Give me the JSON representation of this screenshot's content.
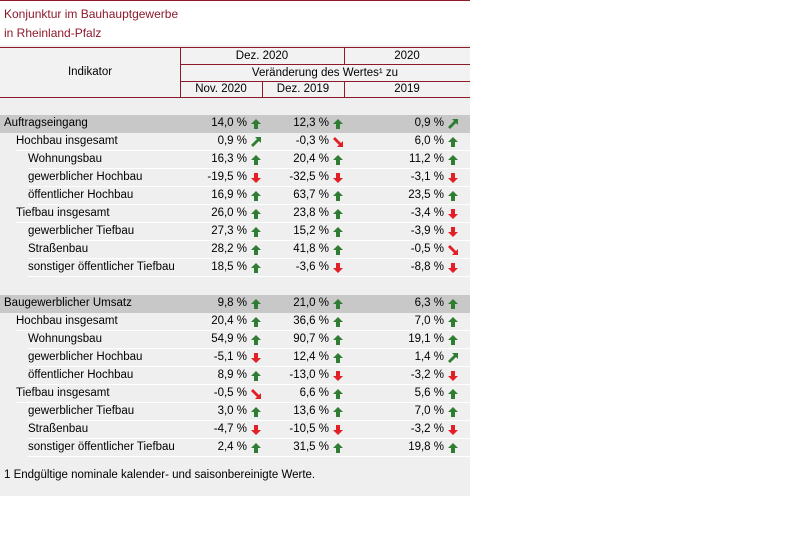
{
  "title": {
    "line1": "Konjunktur im Bauhauptgewerbe",
    "line2": "in Rheinland-Pfalz"
  },
  "header": {
    "indicator": "Indikator",
    "period_dec2020": "Dez. 2020",
    "period_2020": "2020",
    "change_label": "Veränderung des Wertes¹ zu",
    "col1": "Nov. 2020",
    "col2": "Dez. 2019",
    "col3": "2019"
  },
  "sections": [
    {
      "rows": [
        {
          "label": "Auftragseingang",
          "level": 0,
          "v1": "14,0 %",
          "a1": "up",
          "v2": "12,3 %",
          "a2": "up",
          "v3": "0,9 %",
          "a3": "up-right"
        },
        {
          "label": "Hochbau insgesamt",
          "level": 1,
          "v1": "0,9 %",
          "a1": "up-right",
          "v2": "-0,3 %",
          "a2": "down-right",
          "v3": "6,0 %",
          "a3": "up"
        },
        {
          "label": "Wohnungsbau",
          "level": 2,
          "v1": "16,3 %",
          "a1": "up",
          "v2": "20,4 %",
          "a2": "up",
          "v3": "11,2 %",
          "a3": "up"
        },
        {
          "label": "gewerblicher Hochbau",
          "level": 2,
          "v1": "-19,5 %",
          "a1": "down",
          "v2": "-32,5 %",
          "a2": "down",
          "v3": "-3,1 %",
          "a3": "down"
        },
        {
          "label": "öffentlicher Hochbau",
          "level": 2,
          "v1": "16,9 %",
          "a1": "up",
          "v2": "63,7 %",
          "a2": "up",
          "v3": "23,5 %",
          "a3": "up"
        },
        {
          "label": "Tiefbau insgesamt",
          "level": 1,
          "v1": "26,0 %",
          "a1": "up",
          "v2": "23,8 %",
          "a2": "up",
          "v3": "-3,4 %",
          "a3": "down"
        },
        {
          "label": "gewerblicher Tiefbau",
          "level": 2,
          "v1": "27,3 %",
          "a1": "up",
          "v2": "15,2 %",
          "a2": "up",
          "v3": "-3,9 %",
          "a3": "down"
        },
        {
          "label": "Straßenbau",
          "level": 2,
          "v1": "28,2 %",
          "a1": "up",
          "v2": "41,8 %",
          "a2": "up",
          "v3": "-0,5 %",
          "a3": "down-right"
        },
        {
          "label": "sonstiger öffentlicher Tiefbau",
          "level": 2,
          "v1": "18,5 %",
          "a1": "up",
          "v2": "-3,6 %",
          "a2": "down",
          "v3": "-8,8 %",
          "a3": "down"
        }
      ]
    },
    {
      "rows": [
        {
          "label": "Baugewerblicher Umsatz",
          "level": 0,
          "v1": "9,8 %",
          "a1": "up",
          "v2": "21,0 %",
          "a2": "up",
          "v3": "6,3 %",
          "a3": "up"
        },
        {
          "label": "Hochbau insgesamt",
          "level": 1,
          "v1": "20,4 %",
          "a1": "up",
          "v2": "36,6 %",
          "a2": "up",
          "v3": "7,0 %",
          "a3": "up"
        },
        {
          "label": "Wohnungsbau",
          "level": 2,
          "v1": "54,9 %",
          "a1": "up",
          "v2": "90,7 %",
          "a2": "up",
          "v3": "19,1 %",
          "a3": "up"
        },
        {
          "label": "gewerblicher Hochbau",
          "level": 2,
          "v1": "-5,1 %",
          "a1": "down",
          "v2": "12,4 %",
          "a2": "up",
          "v3": "1,4 %",
          "a3": "up-right"
        },
        {
          "label": "öffentlicher Hochbau",
          "level": 2,
          "v1": "8,9 %",
          "a1": "up",
          "v2": "-13,0 %",
          "a2": "down",
          "v3": "-3,2 %",
          "a3": "down"
        },
        {
          "label": "Tiefbau insgesamt",
          "level": 1,
          "v1": "-0,5 %",
          "a1": "down-right",
          "v2": "6,6 %",
          "a2": "up",
          "v3": "5,6 %",
          "a3": "up"
        },
        {
          "label": "gewerblicher Tiefbau",
          "level": 2,
          "v1": "3,0 %",
          "a1": "up",
          "v2": "13,6 %",
          "a2": "up",
          "v3": "7,0 %",
          "a3": "up"
        },
        {
          "label": "Straßenbau",
          "level": 2,
          "v1": "-4,7 %",
          "a1": "down",
          "v2": "-10,5 %",
          "a2": "down",
          "v3": "-3,2 %",
          "a3": "down"
        },
        {
          "label": "sonstiger öffentlicher Tiefbau",
          "level": 2,
          "v1": "2,4 %",
          "a1": "up",
          "v2": "31,5 %",
          "a2": "up",
          "v3": "19,8 %",
          "a3": "up"
        }
      ]
    }
  ],
  "footnote": "1 Endgültige nominale kalender- und saisonbereinigte Werte.",
  "colors": {
    "accent": "#8c1a2b",
    "up": "#2e7d32",
    "down": "#e31e24",
    "section_bar": "#c8c8c8"
  }
}
